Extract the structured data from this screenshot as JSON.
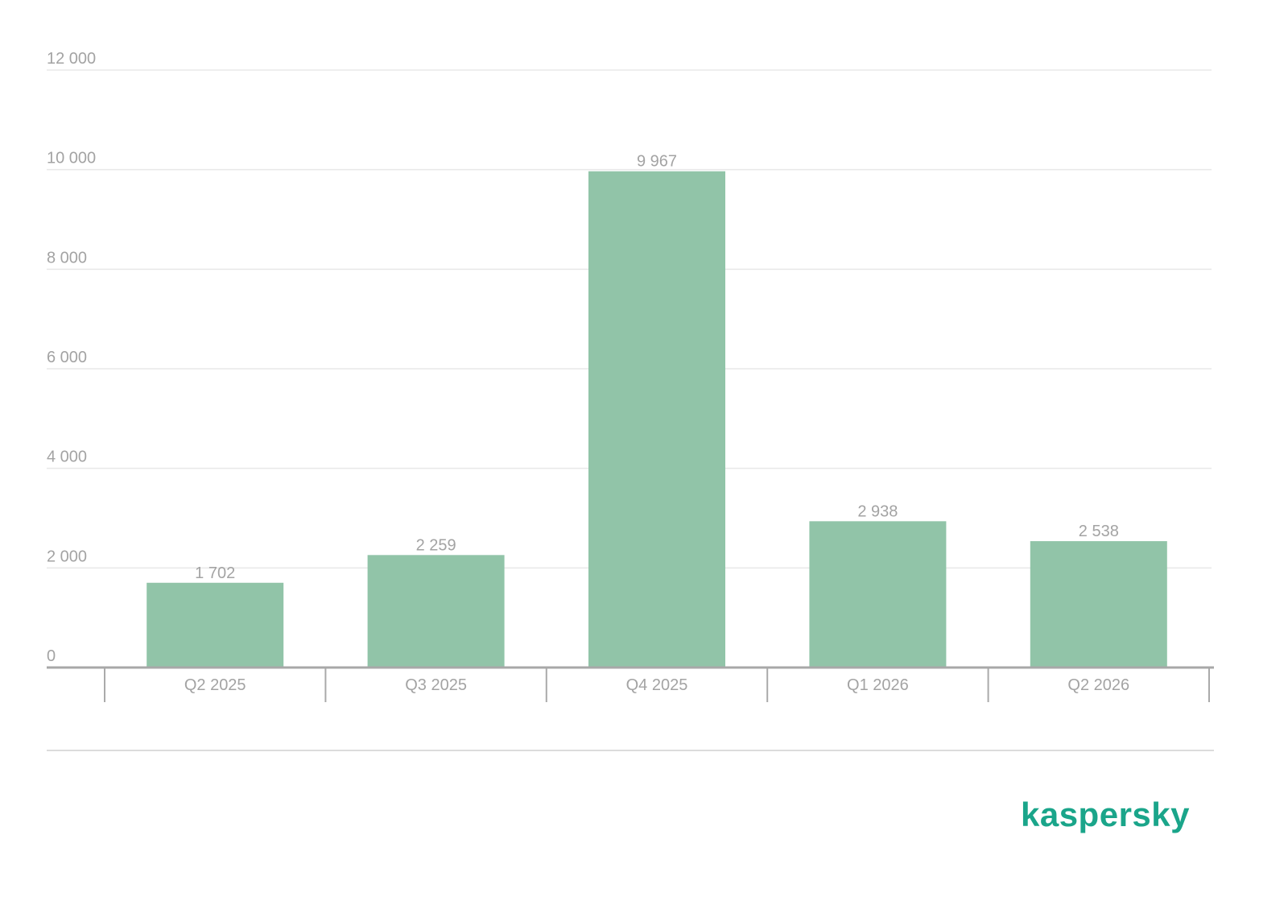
{
  "chart_data": {
    "type": "bar",
    "categories": [
      "Q2 2025",
      "Q3 2025",
      "Q4 2025",
      "Q1 2026",
      "Q2 2026"
    ],
    "values": [
      1702,
      2259,
      9967,
      2938,
      2538
    ],
    "value_labels": [
      "1 702",
      "2 259",
      "9 967",
      "2 938",
      "2 538"
    ],
    "color": "#91c4a8",
    "ylim": [
      0,
      12000
    ],
    "yticks": [
      0,
      {
        "value": 2000,
        "label": "2 000"
      },
      {
        "value": 4000,
        "label": "4 000"
      },
      {
        "value": 6000,
        "label": "6 000"
      },
      {
        "value": 8000,
        "label": "8 000"
      },
      {
        "value": 10000,
        "label": "10 000"
      },
      {
        "value": 12000,
        "label": "12 000"
      }
    ],
    "grid": true
  },
  "brand": "kaspersky"
}
